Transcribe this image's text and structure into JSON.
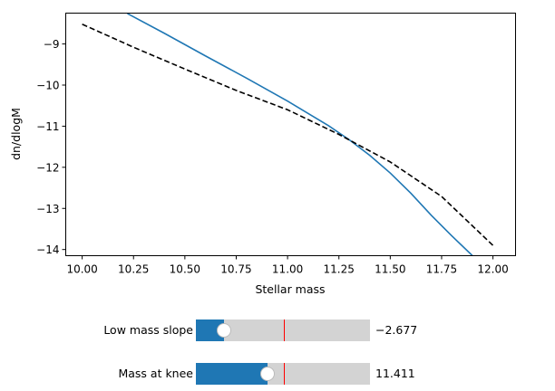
{
  "chart_data": {
    "type": "line",
    "xlabel": "Stellar mass",
    "ylabel": "dn/dlogM",
    "xlim": [
      9.92,
      12.11
    ],
    "ylim": [
      -14.15,
      -8.25
    ],
    "xticks": [
      "10.00",
      "10.25",
      "10.50",
      "10.75",
      "11.00",
      "11.25",
      "11.50",
      "11.75",
      "12.00"
    ],
    "yticks": [
      "−9",
      "−10",
      "−11",
      "−12",
      "−13",
      "−14"
    ],
    "grid": false,
    "series": [
      {
        "style": "solid",
        "color": "#1f77b4",
        "x": [
          10.22,
          10.4,
          10.6,
          10.8,
          11.0,
          11.2,
          11.3,
          11.4,
          11.5,
          11.6,
          11.7,
          11.8,
          11.9
        ],
        "y": [
          -8.26,
          -8.74,
          -9.29,
          -9.83,
          -10.39,
          -10.99,
          -11.33,
          -11.71,
          -12.14,
          -12.63,
          -13.17,
          -13.67,
          -14.15
        ]
      },
      {
        "style": "dashed",
        "color": "#000000",
        "x": [
          10.0,
          10.25,
          10.5,
          10.75,
          11.0,
          11.25,
          11.5,
          11.75,
          12.0
        ],
        "y": [
          -8.52,
          -9.08,
          -9.61,
          -10.13,
          -10.6,
          -11.2,
          -11.87,
          -12.71,
          -13.9
        ]
      }
    ]
  },
  "sliders": [
    {
      "label": "Low mass slope",
      "value_text": "−2.677",
      "fill": 0.16,
      "initial": 0.505
    },
    {
      "label": "Mass at knee",
      "value_text": "11.411",
      "fill": 0.41,
      "initial": 0.505
    }
  ]
}
